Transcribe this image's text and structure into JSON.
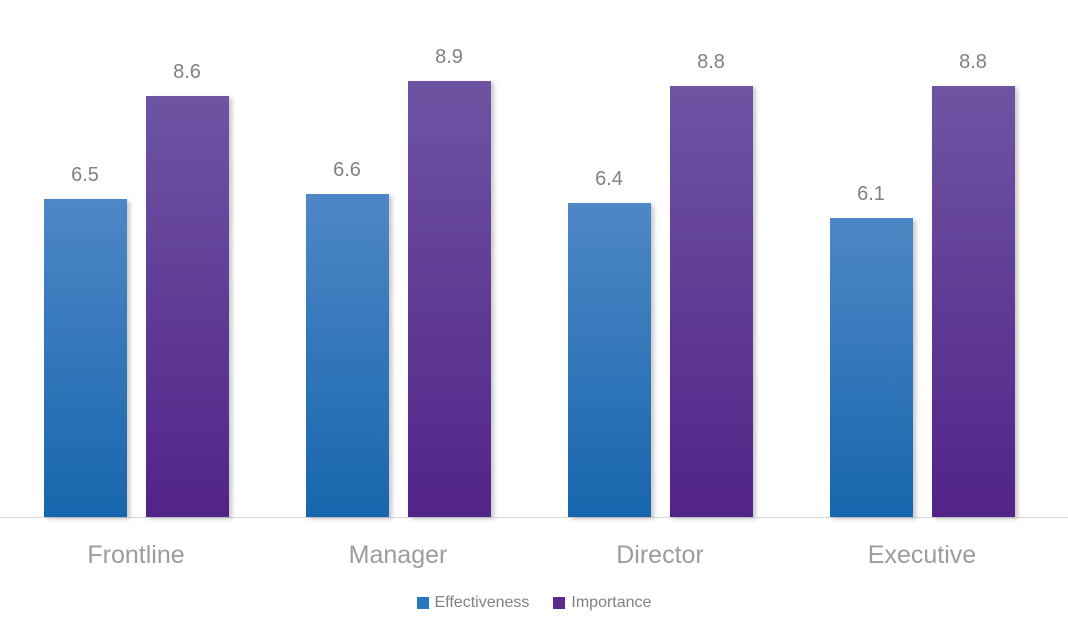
{
  "chart_data": {
    "type": "bar",
    "title": "",
    "xlabel": "",
    "ylabel": "",
    "categories": [
      "Frontline",
      "Manager",
      "Director",
      "Executive"
    ],
    "series": [
      {
        "name": "Effectiveness",
        "values": [
          6.5,
          6.6,
          6.4,
          6.1
        ],
        "labels": [
          "6.5",
          "6.6",
          "6.4",
          "6.1"
        ],
        "color_top": "#4e87c6",
        "color_bottom": "#1766ad",
        "legend_color": "#2878be"
      },
      {
        "name": "Importance",
        "values": [
          8.6,
          8.9,
          8.8,
          8.8
        ],
        "labels": [
          "8.6",
          "8.9",
          "8.8",
          "8.8"
        ],
        "color_top": "#6e54a3",
        "color_bottom": "#522388",
        "legend_color": "#5a2b8e"
      }
    ],
    "ylim": [
      0,
      10
    ],
    "grid": false,
    "data_labels": true,
    "legend_position": "bottom"
  },
  "colors": {
    "background": "#ffffff",
    "baseline": "#d9d9d9",
    "value_label_text": "#7f8285",
    "category_label_text": "#9a9da0",
    "legend_text": "#7f8285"
  }
}
